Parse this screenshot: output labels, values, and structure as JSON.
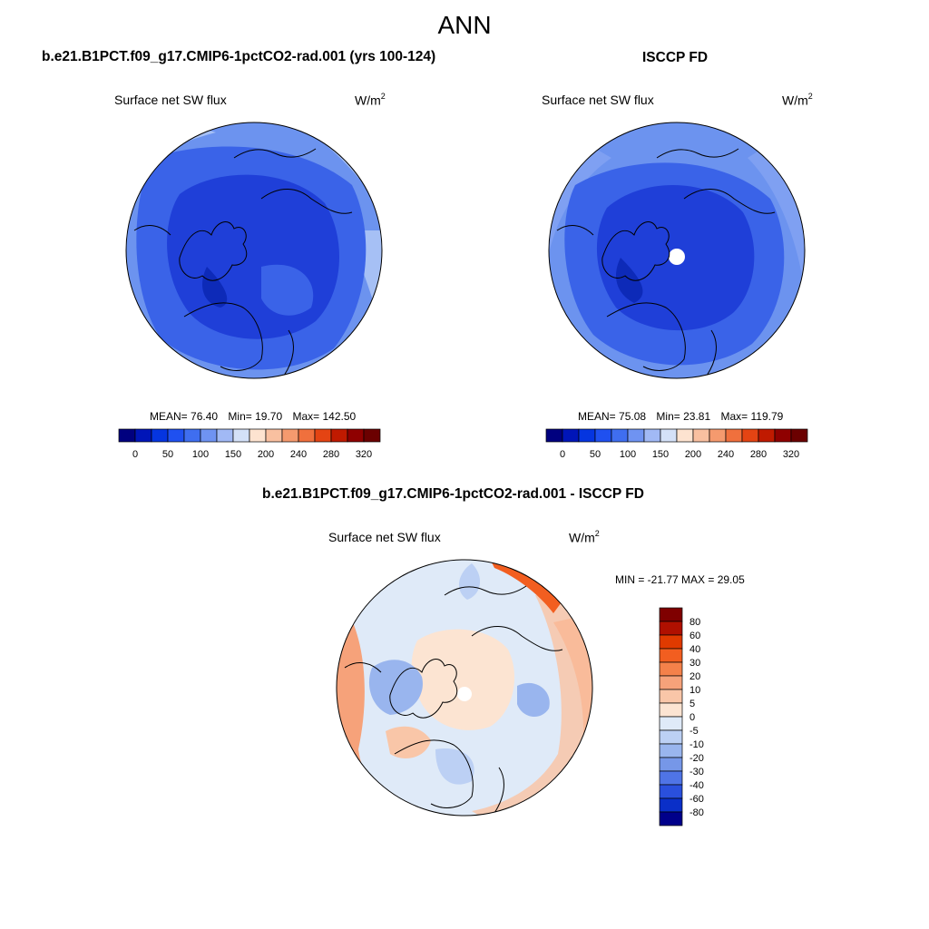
{
  "figure": {
    "title": "ANN"
  },
  "panels": [
    {
      "title": "b.e21.B1PCT.f09_g17.CMIP6-1pctCO2-rad.001 (yrs 100-124)",
      "variable_label": "Surface net SW flux",
      "units_base": "W/m",
      "units_exp": "2",
      "stats": {
        "mean_label": "MEAN=",
        "mean": "76.40",
        "min_label": "Min=",
        "min": "19.70",
        "max_label": "Max=",
        "max": "142.50"
      },
      "colorbar_ticks": [
        "0",
        "50",
        "100",
        "150",
        "200",
        "240",
        "280",
        "320"
      ]
    },
    {
      "title": "ISCCP FD",
      "variable_label": "Surface net SW flux",
      "units_base": "W/m",
      "units_exp": "2",
      "stats": {
        "mean_label": "MEAN=",
        "mean": "75.08",
        "min_label": "Min=",
        "min": "23.81",
        "max_label": "Max=",
        "max": "119.79"
      },
      "colorbar_ticks": [
        "0",
        "50",
        "100",
        "150",
        "200",
        "240",
        "280",
        "320"
      ]
    },
    {
      "title": "b.e21.B1PCT.f09_g17.CMIP6-1pctCO2-rad.001 - ISCCP FD",
      "variable_label": "Surface net SW flux",
      "units_base": "W/m",
      "units_exp": "2",
      "stats_text": "MIN = -21.77 MAX =  29.05",
      "colorbar_ticks": [
        "80",
        "60",
        "40",
        "30",
        "20",
        "10",
        "5",
        "0",
        "-5",
        "-10",
        "-20",
        "-30",
        "-40",
        "-60",
        "-80"
      ]
    }
  ],
  "colors": {
    "sequential": [
      "#00007f",
      "#0015b8",
      "#0535e0",
      "#1f50f0",
      "#3f6ef0",
      "#6f93f2",
      "#a1b9f5",
      "#d4e1f8",
      "#fde3d0",
      "#f9c0a0",
      "#f59a6e",
      "#f0703d",
      "#e44413",
      "#c01a00",
      "#8f0000",
      "#6b0000"
    ],
    "diverging": [
      "#7f0000",
      "#b01000",
      "#e03a00",
      "#f25e20",
      "#f4814a",
      "#f6a27a",
      "#f9c6a8",
      "#fce4d2",
      "#dfeaf8",
      "#bcd0f4",
      "#99b5ee",
      "#7697e8",
      "#4f74e6",
      "#2a50dd",
      "#0a2fc8",
      "#00008a"
    ],
    "coast": "#000000",
    "blue_deep": "#1f3fd8",
    "blue_mid": "#3a63e8",
    "blue_light": "#6c93ef",
    "blue_pale": "#a6c0f5"
  }
}
